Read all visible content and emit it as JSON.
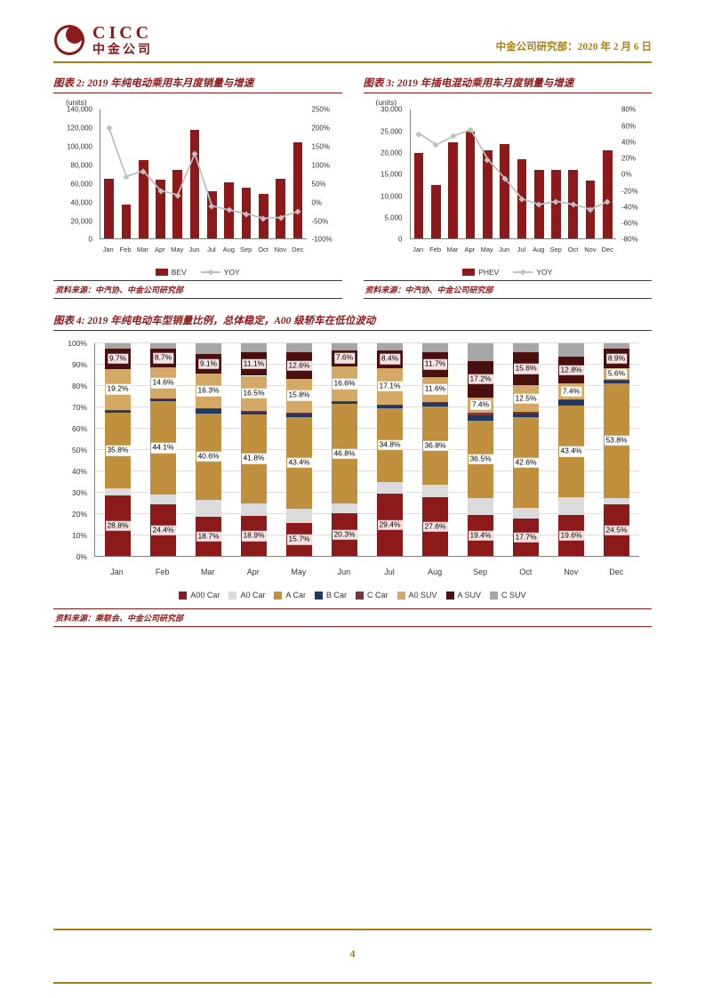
{
  "header": {
    "logo_en": "CICC",
    "logo_cn": "中金公司",
    "right_text": "中金公司研究部：2020 年 2 月 6 日"
  },
  "footer": {
    "page_number": "4"
  },
  "colors": {
    "brand_red": "#8C1A1A",
    "gold": "#A97E12",
    "line_gray": "#BFBFBF"
  },
  "chart_data": [
    {
      "id": "bev",
      "type": "bar-line",
      "title": "图表 2: 2019 年纯电动乘用车月度销量与增速",
      "unit_label": "(units)",
      "source": "资料来源：中汽协、中金公司研究部",
      "categories": [
        "Jan",
        "Feb",
        "Mar",
        "Apr",
        "May",
        "Jun",
        "Jul",
        "Aug",
        "Sep",
        "Oct",
        "Nov",
        "Dec"
      ],
      "bar_width_pct": 4.6,
      "bar_series": {
        "name": "BEV",
        "color": "#8C1A1A",
        "values": [
          65000,
          37000,
          85000,
          64000,
          75000,
          118000,
          52000,
          61000,
          55000,
          49000,
          65000,
          105000
        ]
      },
      "line_series": {
        "name": "YOY",
        "color": "#BFBFBF",
        "values": [
          2.0,
          0.68,
          0.83,
          0.3,
          0.18,
          1.3,
          -0.12,
          -0.23,
          -0.33,
          -0.45,
          -0.43,
          -0.27
        ]
      },
      "left_axis": {
        "min": 0,
        "max": 140000,
        "labels": [
          "140,000",
          "120,000",
          "100,000",
          "80,000",
          "60,000",
          "40,000",
          "20,000",
          "0"
        ]
      },
      "right_axis": {
        "min": -1.0,
        "max": 2.5,
        "labels": [
          "250%",
          "200%",
          "150%",
          "100%",
          "50%",
          "0%",
          "-50%",
          "-100%"
        ]
      },
      "legend": [
        {
          "type": "bar",
          "label": "BEV",
          "color": "#8C1A1A"
        },
        {
          "type": "line",
          "label": "YOY",
          "color": "#BFBFBF"
        }
      ]
    },
    {
      "id": "phev",
      "type": "bar-line",
      "title": "图表 3: 2019 年插电混动乘用车月度销量与增速",
      "unit_label": "(units)",
      "source": "资料来源：中汽协、中金公司研究部",
      "categories": [
        "Jan",
        "Feb",
        "Mar",
        "Apr",
        "May",
        "Jun",
        "Jul",
        "Aug",
        "Sep",
        "Oct",
        "Nov",
        "Dec"
      ],
      "bar_width_pct": 4.6,
      "bar_series": {
        "name": "PHEV",
        "color": "#8C1A1A",
        "values": [
          20000,
          12500,
          22500,
          25000,
          20500,
          22000,
          18500,
          16000,
          16000,
          16000,
          13500,
          20500
        ]
      },
      "line_series": {
        "name": "YOY",
        "color": "#BFBFBF",
        "values": [
          0.5,
          0.36,
          0.47,
          0.55,
          0.18,
          -0.06,
          -0.31,
          -0.38,
          -0.34,
          -0.38,
          -0.44,
          -0.34
        ]
      },
      "left_axis": {
        "min": 0,
        "max": 30000,
        "labels": [
          "30,000",
          "25,000",
          "20,000",
          "15,000",
          "10,000",
          "5,000",
          "0"
        ]
      },
      "right_axis": {
        "min": -0.8,
        "max": 0.8,
        "labels": [
          "80%",
          "60%",
          "40%",
          "20%",
          "0%",
          "-20%",
          "-40%",
          "-60%",
          "-80%"
        ]
      },
      "legend": [
        {
          "type": "bar",
          "label": "PHEV",
          "color": "#8C1A1A"
        },
        {
          "type": "line",
          "label": "YOY",
          "color": "#BFBFBF"
        }
      ]
    },
    {
      "id": "mix",
      "type": "stacked-bar-100",
      "title": "图表 4: 2019 年纯电动车型销量比例，总体稳定，A00 级轿车在低位波动",
      "source": "资料来源：乘联会、中金公司研究部",
      "categories": [
        "Jan",
        "Feb",
        "Mar",
        "Apr",
        "May",
        "Jun",
        "Jul",
        "Aug",
        "Sep",
        "Oct",
        "Nov",
        "Dec"
      ],
      "bar_width_pct": 4.6,
      "left_axis": {
        "min": 0,
        "max": 100,
        "labels": [
          "100%",
          "90%",
          "80%",
          "70%",
          "60%",
          "50%",
          "40%",
          "30%",
          "20%",
          "10%",
          "0%"
        ]
      },
      "series": [
        {
          "name": "A00 Car",
          "color": "#8C1A1A",
          "show_label": true,
          "label_bg": "#F6E3E3",
          "values": [
            28.8,
            24.4,
            18.7,
            18.9,
            15.7,
            20.3,
            29.4,
            27.6,
            19.4,
            17.7,
            19.6,
            24.5
          ]
        },
        {
          "name": "A0 Car",
          "color": "#DBDBDB",
          "show_label": false,
          "label_bg": "#FFFFFF",
          "values": [
            3.0,
            4.5,
            8.0,
            6.0,
            6.5,
            4.5,
            5.5,
            6.0,
            8.0,
            5.0,
            8.0,
            3.0
          ]
        },
        {
          "name": "A Car",
          "color": "#C0903F",
          "show_label": true,
          "label_bg": "#FFFFFF",
          "values": [
            35.8,
            44.1,
            40.6,
            41.8,
            43.4,
            46.8,
            34.8,
            36.8,
            36.5,
            42.6,
            43.4,
            53.8
          ]
        },
        {
          "name": "B Car",
          "color": "#1F3864",
          "show_label": false,
          "label_bg": "#FFFFFF",
          "values": [
            1.0,
            1.0,
            2.0,
            1.5,
            1.5,
            1.0,
            1.5,
            1.8,
            2.5,
            2.0,
            2.3,
            1.2
          ]
        },
        {
          "name": "C Car",
          "color": "#7B3735",
          "show_label": false,
          "label_bg": "#FFFFFF",
          "values": [
            0.3,
            0.2,
            0.3,
            0.2,
            0.5,
            0.2,
            0.3,
            0.5,
            1.0,
            0.6,
            0.5,
            0.5
          ]
        },
        {
          "name": "A0 SUV",
          "color": "#D4A965",
          "show_label": true,
          "label_bg": "#FFFFFF",
          "values": [
            19.2,
            14.6,
            16.3,
            16.5,
            15.8,
            16.6,
            17.1,
            11.6,
            7.4,
            12.5,
            7.4,
            5.6
          ]
        },
        {
          "name": "A SUV",
          "color": "#4A1010",
          "show_label": true,
          "label_bg": "#F6E3E3",
          "values": [
            9.7,
            8.7,
            9.1,
            11.1,
            12.6,
            7.6,
            8.4,
            11.7,
            17.2,
            15.6,
            12.8,
            8.9
          ]
        },
        {
          "name": "C SUV",
          "color": "#A6A6A6",
          "show_label": false,
          "label_bg": "#FFFFFF",
          "values": [
            2.2,
            2.5,
            5.0,
            4.0,
            4.0,
            3.0,
            3.0,
            4.0,
            8.0,
            4.0,
            6.0,
            2.5
          ]
        }
      ],
      "legend": [
        {
          "type": "square",
          "label": "A00 Car",
          "color": "#8C1A1A"
        },
        {
          "type": "square",
          "label": "A0 Car",
          "color": "#DBDBDB"
        },
        {
          "type": "square",
          "label": "A Car",
          "color": "#C0903F"
        },
        {
          "type": "square",
          "label": "B Car",
          "color": "#1F3864"
        },
        {
          "type": "square",
          "label": "C Car",
          "color": "#7B3735"
        },
        {
          "type": "square",
          "label": "A0 SUV",
          "color": "#D4A965"
        },
        {
          "type": "square",
          "label": "A SUV",
          "color": "#4A1010"
        },
        {
          "type": "square",
          "label": "C SUV",
          "color": "#A6A6A6"
        }
      ]
    }
  ]
}
